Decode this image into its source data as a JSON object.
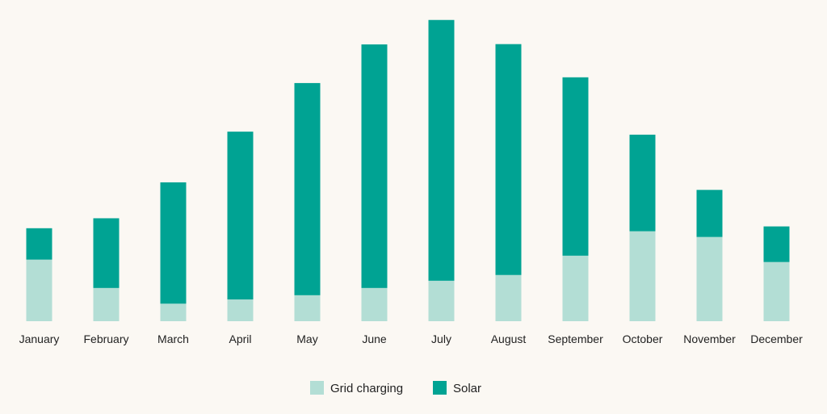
{
  "colors": {
    "background": "#fbf8f3",
    "grid_charging": "#b3ded5",
    "solar": "#00a393"
  },
  "legend": {
    "grid_charging_label": "Grid charging",
    "solar_label": "Solar"
  },
  "chart_data": {
    "type": "bar",
    "stacked": true,
    "title": "",
    "xlabel": "",
    "ylabel": "",
    "ylim": [
      0,
      100
    ],
    "grid": false,
    "legend_position": "bottom",
    "categories": [
      "January",
      "February",
      "March",
      "April",
      "May",
      "June",
      "July",
      "August",
      "September",
      "October",
      "November",
      "December"
    ],
    "series": [
      {
        "name": "Grid charging",
        "color": "#b3ded5",
        "values": [
          20.4,
          11.0,
          5.8,
          7.2,
          8.6,
          11.0,
          13.4,
          15.3,
          21.7,
          29.8,
          27.9,
          19.6
        ]
      },
      {
        "name": "Solar",
        "color": "#00a393",
        "values": [
          10.4,
          23.1,
          40.2,
          55.6,
          70.3,
          80.7,
          86.4,
          76.5,
          59.1,
          32.0,
          15.6,
          11.8
        ]
      }
    ]
  }
}
